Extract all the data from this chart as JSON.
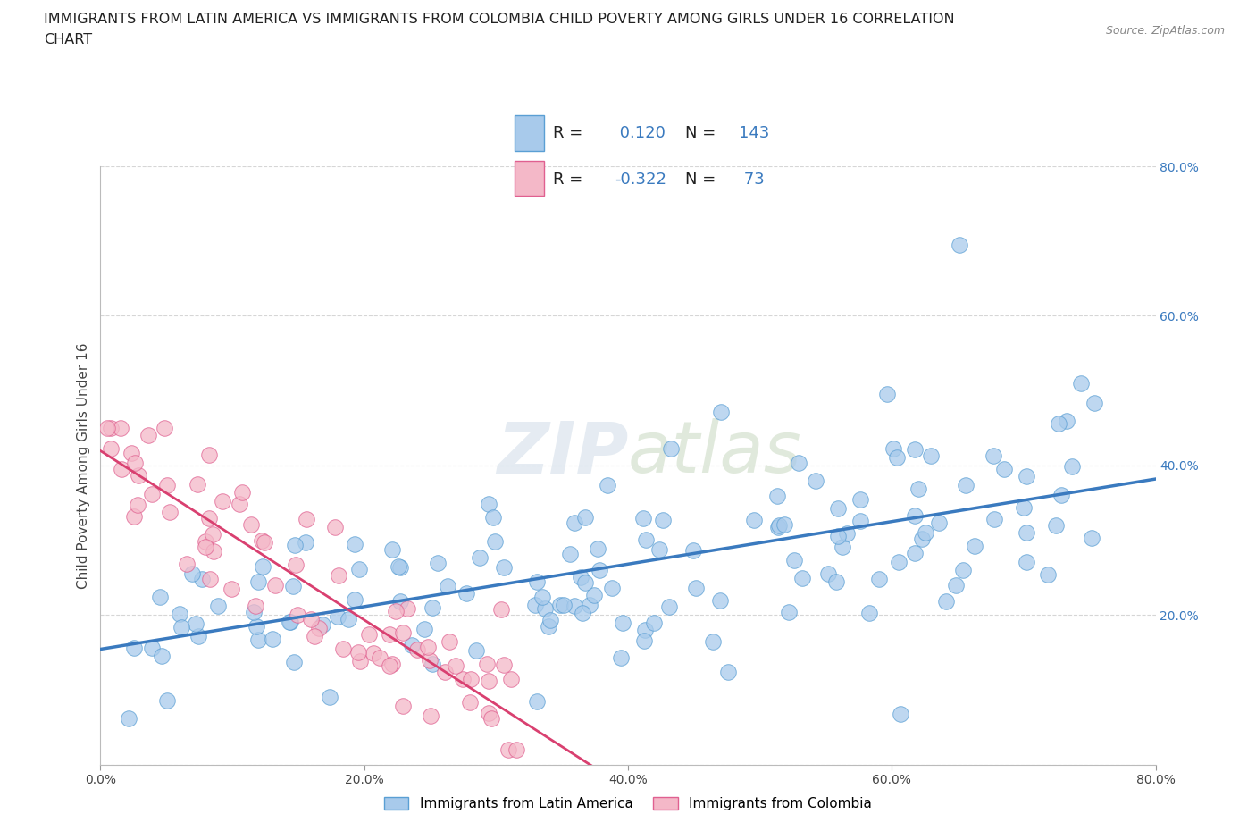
{
  "title_line1": "IMMIGRANTS FROM LATIN AMERICA VS IMMIGRANTS FROM COLOMBIA CHILD POVERTY AMONG GIRLS UNDER 16 CORRELATION",
  "title_line2": "CHART",
  "source": "Source: ZipAtlas.com",
  "ylabel": "Child Poverty Among Girls Under 16",
  "xlim": [
    0.0,
    0.8
  ],
  "ylim": [
    0.0,
    0.8
  ],
  "xticks": [
    0.0,
    0.2,
    0.4,
    0.6,
    0.8
  ],
  "yticks": [
    0.0,
    0.2,
    0.4,
    0.6,
    0.8
  ],
  "series1_color": "#a8caeb",
  "series1_edgecolor": "#5a9fd4",
  "series2_color": "#f4b8c8",
  "series2_edgecolor": "#e06090",
  "series1_label": "Immigrants from Latin America",
  "series2_label": "Immigrants from Colombia",
  "R1": 0.12,
  "N1": 143,
  "R2": -0.322,
  "N2": 73,
  "trend1_color": "#3a7abf",
  "trend2_color": "#d94070",
  "watermark_zip": "ZIP",
  "watermark_atlas": "atlas",
  "background_color": "#ffffff",
  "grid_color": "#cccccc",
  "legend_r_color": "#3a7abf",
  "legend_n_color": "#3a7abf",
  "seed1": 7,
  "seed2": 13,
  "title_fontsize": 11.5,
  "ylabel_fontsize": 11,
  "tick_fontsize": 10
}
